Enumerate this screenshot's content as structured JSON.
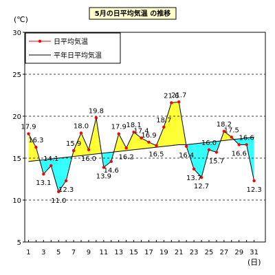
{
  "chart_data": {
    "type": "line",
    "title": "5月の日平均気温 の推移",
    "y_unit": "(℃)",
    "x_unit": "(日)",
    "ylim": [
      5,
      30
    ],
    "y_ticks": [
      5,
      10,
      15,
      20,
      25,
      30
    ],
    "x_ticks": [
      1,
      3,
      5,
      7,
      9,
      11,
      13,
      15,
      17,
      19,
      21,
      23,
      25,
      27,
      29,
      31
    ],
    "grid": "dashed-horizontal",
    "legend_position": "top-left",
    "x": [
      1,
      2,
      3,
      4,
      5,
      6,
      7,
      8,
      9,
      10,
      11,
      12,
      13,
      14,
      15,
      16,
      17,
      18,
      19,
      20,
      21,
      22,
      23,
      24,
      25,
      26,
      27,
      28,
      29,
      30,
      31
    ],
    "series": [
      {
        "name": "日平均気温",
        "color": "#ff0000",
        "values": [
          17.9,
          16.3,
          13.1,
          14.1,
          11.0,
          12.3,
          15.9,
          18.0,
          16.0,
          19.8,
          13.9,
          14.6,
          17.9,
          16.2,
          18.1,
          17.4,
          16.9,
          16.5,
          18.7,
          21.6,
          21.7,
          16.4,
          13.7,
          12.7,
          16.0,
          15.7,
          18.2,
          17.5,
          16.6,
          16.6,
          12.3
        ]
      },
      {
        "name": "平年日平均気温",
        "color": "#000000",
        "values": [
          14.6,
          14.7,
          14.8,
          14.9,
          15.0,
          15.1,
          15.2,
          15.3,
          15.4,
          15.5,
          15.6,
          15.7,
          15.8,
          15.9,
          16.0,
          16.1,
          16.2,
          16.3,
          16.4,
          16.5,
          16.6,
          16.6,
          16.7,
          16.8,
          16.9,
          17.0,
          17.1,
          17.2,
          17.3,
          17.4,
          17.5
        ]
      }
    ],
    "labels": [
      {
        "day": 1,
        "text": "17.9",
        "pos": "above"
      },
      {
        "day": 2,
        "text": "16.3",
        "pos": "above"
      },
      {
        "day": 3,
        "text": "13.1",
        "pos": "below"
      },
      {
        "day": 4,
        "text": "14.1",
        "pos": "above"
      },
      {
        "day": 5,
        "text": "11.0",
        "pos": "below"
      },
      {
        "day": 6,
        "text": "12.3",
        "pos": "below"
      },
      {
        "day": 7,
        "text": "15.9",
        "pos": "above"
      },
      {
        "day": 8,
        "text": "18.0",
        "pos": "above"
      },
      {
        "day": 9,
        "text": "16.0",
        "pos": "below"
      },
      {
        "day": 10,
        "text": "19.8",
        "pos": "above"
      },
      {
        "day": 11,
        "text": "13.9",
        "pos": "below"
      },
      {
        "day": 12,
        "text": "14.6",
        "pos": "below"
      },
      {
        "day": 13,
        "text": "17.9",
        "pos": "above"
      },
      {
        "day": 14,
        "text": "16.2",
        "pos": "below"
      },
      {
        "day": 15,
        "text": "18.1",
        "pos": "above"
      },
      {
        "day": 16,
        "text": "17.4",
        "pos": "above"
      },
      {
        "day": 17,
        "text": "16.9",
        "pos": "above"
      },
      {
        "day": 18,
        "text": "16.5",
        "pos": "below"
      },
      {
        "day": 19,
        "text": "18.7",
        "pos": "above"
      },
      {
        "day": 20,
        "text": "21.6",
        "pos": "above"
      },
      {
        "day": 21,
        "text": "21.7",
        "pos": "above"
      },
      {
        "day": 22,
        "text": "16.4",
        "pos": "below"
      },
      {
        "day": 23,
        "text": "13.7",
        "pos": "below"
      },
      {
        "day": 24,
        "text": "12.7",
        "pos": "below"
      },
      {
        "day": 25,
        "text": "16.0",
        "pos": "above"
      },
      {
        "day": 26,
        "text": "15.7",
        "pos": "below"
      },
      {
        "day": 27,
        "text": "18.2",
        "pos": "above"
      },
      {
        "day": 28,
        "text": "17.5",
        "pos": "above"
      },
      {
        "day": 29,
        "text": "16.6",
        "pos": "below"
      },
      {
        "day": 30,
        "text": "16.6",
        "pos": "above"
      },
      {
        "day": 31,
        "text": "12.3",
        "pos": "below"
      }
    ],
    "fill_above_color": "#ffff33",
    "fill_below_color": "#33ffff"
  }
}
